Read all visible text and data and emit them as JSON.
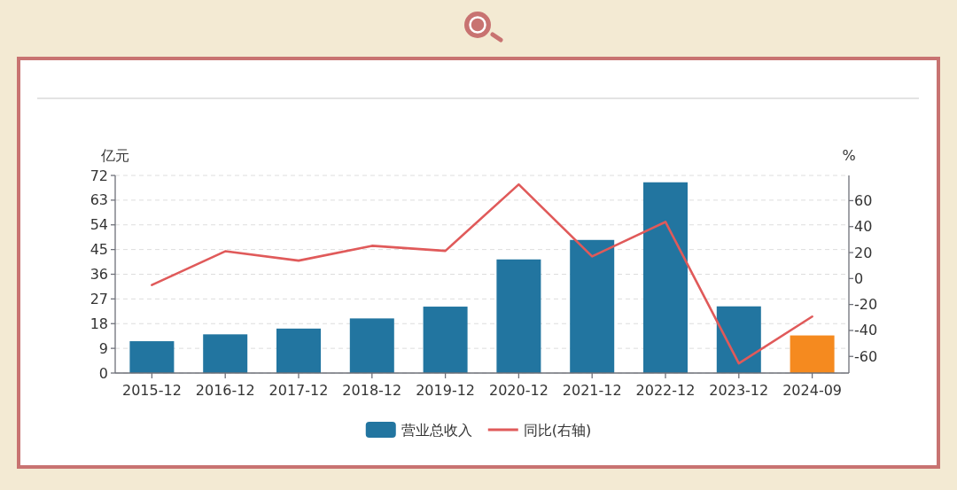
{
  "chart_data": {
    "type": "bar",
    "categories": [
      "2015-12",
      "2016-12",
      "2017-12",
      "2018-12",
      "2019-12",
      "2020-12",
      "2021-12",
      "2022-12",
      "2023-12",
      "2024-09"
    ],
    "ylabel": "亿元",
    "y2label": "%",
    "ylim": [
      0,
      72
    ],
    "yticks": [
      0,
      9,
      18,
      27,
      36,
      45,
      54,
      63,
      72
    ],
    "y2lim": [
      -72.8,
      79.4
    ],
    "y2ticks": [
      -60,
      -40,
      -20,
      0,
      20,
      40,
      60
    ],
    "grid": "y",
    "legend": "bottom",
    "series": [
      {
        "name": "营业总收入",
        "color": "#2275a0",
        "colors": [
          "#2275a0",
          "#2275a0",
          "#2275a0",
          "#2275a0",
          "#2275a0",
          "#2275a0",
          "#2275a0",
          "#2275a0",
          "#2275a0",
          "#f58a1f"
        ],
        "values": [
          11.6,
          14.1,
          16.2,
          19.9,
          24.2,
          41.4,
          48.5,
          69.5,
          24.3,
          13.7
        ]
      },
      {
        "name": "同比(右轴)",
        "type": "line",
        "axis": "y2",
        "color": "#e05a5a",
        "values": [
          -5.0,
          21.0,
          13.8,
          25.2,
          21.3,
          72.5,
          17.0,
          43.6,
          -65.4,
          -29.3
        ]
      }
    ]
  }
}
